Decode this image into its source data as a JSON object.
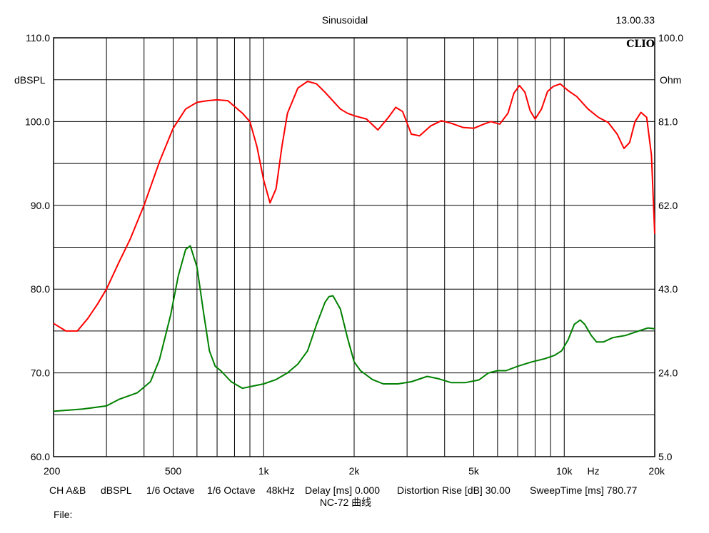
{
  "header": {
    "title": "Sinusoidal",
    "time": "13.00.33",
    "brand": "CLIO"
  },
  "footer": {
    "items": [
      "CH A&B",
      "dBSPL",
      "1/6 Octave",
      "1/6 Octave",
      "48kHz",
      "Delay [ms] 0.000",
      "Distortion Rise [dB] 30.00",
      "SweepTime [ms] 780.77"
    ],
    "caption": "NC-72 曲线",
    "file_label": "File:"
  },
  "colors": {
    "spl_curve": "#ff0000",
    "impedance_curve": "#008000",
    "grid": "#000000",
    "background": "#ffffff"
  },
  "chart_data": {
    "type": "line",
    "x_scale": "log",
    "xlim": [
      200,
      20000
    ],
    "x_ticks": [
      {
        "value": 200,
        "label": "200"
      },
      {
        "value": 500,
        "label": "500"
      },
      {
        "value": 1000,
        "label": "1k"
      },
      {
        "value": 2000,
        "label": "2k"
      },
      {
        "value": 5000,
        "label": "5k"
      },
      {
        "value": 10000,
        "label": "10k"
      },
      {
        "value": 20000,
        "label": "20k"
      }
    ],
    "x_unit_label": "Hz",
    "x_unit_at": 12500,
    "x_gridlines": [
      200,
      300,
      400,
      500,
      600,
      700,
      800,
      900,
      1000,
      2000,
      3000,
      4000,
      5000,
      6000,
      7000,
      8000,
      9000,
      10000,
      20000
    ],
    "left_axis": {
      "label": "dBSPL",
      "ylim": [
        60,
        110
      ],
      "ticks": [
        60,
        70,
        80,
        90,
        100,
        110
      ],
      "tick_labels": [
        "60.0",
        "70.0",
        "80.0",
        "90.0",
        "100.0",
        "110.0"
      ],
      "minor_ticks": [
        65,
        75,
        85,
        95,
        105
      ]
    },
    "right_axis": {
      "label": "Ohm",
      "ylim": [
        5,
        100
      ],
      "ticks": [
        5,
        24,
        43,
        62,
        81,
        100
      ],
      "tick_labels": [
        "5.0",
        "24.0",
        "43.0",
        "62.0",
        "81.0",
        "100.0"
      ]
    },
    "grid": true,
    "series": [
      {
        "axis": "left",
        "color": "#ff0000",
        "points": [
          [
            200,
            75.9
          ],
          [
            220,
            75.0
          ],
          [
            240,
            75.0
          ],
          [
            260,
            76.5
          ],
          [
            280,
            78.2
          ],
          [
            300,
            80.0
          ],
          [
            330,
            83.2
          ],
          [
            360,
            86.0
          ],
          [
            400,
            90.0
          ],
          [
            450,
            95.2
          ],
          [
            500,
            99.2
          ],
          [
            550,
            101.5
          ],
          [
            600,
            102.3
          ],
          [
            650,
            102.5
          ],
          [
            700,
            102.6
          ],
          [
            760,
            102.5
          ],
          [
            850,
            101.0
          ],
          [
            900,
            100.0
          ],
          [
            950,
            97.0
          ],
          [
            1000,
            93.0
          ],
          [
            1050,
            90.3
          ],
          [
            1100,
            92.0
          ],
          [
            1150,
            97.0
          ],
          [
            1200,
            101.0
          ],
          [
            1300,
            104.0
          ],
          [
            1400,
            104.8
          ],
          [
            1500,
            104.5
          ],
          [
            1600,
            103.5
          ],
          [
            1800,
            101.5
          ],
          [
            1900,
            101.0
          ],
          [
            2000,
            100.7
          ],
          [
            2200,
            100.3
          ],
          [
            2400,
            99.0
          ],
          [
            2600,
            100.5
          ],
          [
            2750,
            101.7
          ],
          [
            2900,
            101.2
          ],
          [
            3100,
            98.5
          ],
          [
            3300,
            98.3
          ],
          [
            3600,
            99.5
          ],
          [
            3900,
            100.1
          ],
          [
            4200,
            99.8
          ],
          [
            4600,
            99.3
          ],
          [
            5000,
            99.2
          ],
          [
            5400,
            99.7
          ],
          [
            5700,
            100.0
          ],
          [
            6100,
            99.7
          ],
          [
            6500,
            101.0
          ],
          [
            6800,
            103.4
          ],
          [
            7100,
            104.3
          ],
          [
            7400,
            103.5
          ],
          [
            7700,
            101.3
          ],
          [
            8000,
            100.3
          ],
          [
            8400,
            101.5
          ],
          [
            8800,
            103.6
          ],
          [
            9200,
            104.2
          ],
          [
            9700,
            104.5
          ],
          [
            10300,
            103.7
          ],
          [
            11000,
            103.0
          ],
          [
            12000,
            101.5
          ],
          [
            13000,
            100.5
          ],
          [
            14000,
            99.9
          ],
          [
            15000,
            98.5
          ],
          [
            15800,
            96.8
          ],
          [
            16500,
            97.5
          ],
          [
            17200,
            100.0
          ],
          [
            18000,
            101.1
          ],
          [
            18800,
            100.5
          ],
          [
            19500,
            96.0
          ],
          [
            20000,
            86.6
          ]
        ]
      },
      {
        "axis": "right",
        "color": "#008000",
        "points": [
          [
            200,
            15.3
          ],
          [
            250,
            15.8
          ],
          [
            300,
            16.5
          ],
          [
            330,
            18.0
          ],
          [
            380,
            19.5
          ],
          [
            420,
            22.0
          ],
          [
            450,
            27.0
          ],
          [
            490,
            37.0
          ],
          [
            520,
            46.0
          ],
          [
            550,
            52.0
          ],
          [
            570,
            52.8
          ],
          [
            600,
            48.0
          ],
          [
            630,
            38.0
          ],
          [
            660,
            29.0
          ],
          [
            690,
            25.5
          ],
          [
            720,
            24.5
          ],
          [
            780,
            22.0
          ],
          [
            850,
            20.5
          ],
          [
            920,
            21.0
          ],
          [
            1000,
            21.5
          ],
          [
            1100,
            22.5
          ],
          [
            1200,
            24.0
          ],
          [
            1300,
            26.0
          ],
          [
            1400,
            29.0
          ],
          [
            1500,
            35.0
          ],
          [
            1600,
            40.0
          ],
          [
            1650,
            41.3
          ],
          [
            1700,
            41.5
          ],
          [
            1800,
            38.5
          ],
          [
            1900,
            32.0
          ],
          [
            2000,
            26.5
          ],
          [
            2100,
            24.5
          ],
          [
            2300,
            22.5
          ],
          [
            2500,
            21.5
          ],
          [
            2800,
            21.5
          ],
          [
            3100,
            22.0
          ],
          [
            3500,
            23.2
          ],
          [
            3800,
            22.7
          ],
          [
            4200,
            21.8
          ],
          [
            4700,
            21.8
          ],
          [
            5200,
            22.4
          ],
          [
            5600,
            24.0
          ],
          [
            6000,
            24.5
          ],
          [
            6400,
            24.5
          ],
          [
            7000,
            25.5
          ],
          [
            7800,
            26.5
          ],
          [
            8600,
            27.2
          ],
          [
            9300,
            28.0
          ],
          [
            9800,
            29.0
          ],
          [
            10300,
            31.5
          ],
          [
            10800,
            35.0
          ],
          [
            11300,
            36.0
          ],
          [
            11700,
            35.0
          ],
          [
            12300,
            32.5
          ],
          [
            12800,
            31.0
          ],
          [
            13500,
            31.0
          ],
          [
            14500,
            32.0
          ],
          [
            16000,
            32.5
          ],
          [
            17500,
            33.4
          ],
          [
            19000,
            34.2
          ],
          [
            20000,
            34.0
          ]
        ]
      }
    ]
  }
}
